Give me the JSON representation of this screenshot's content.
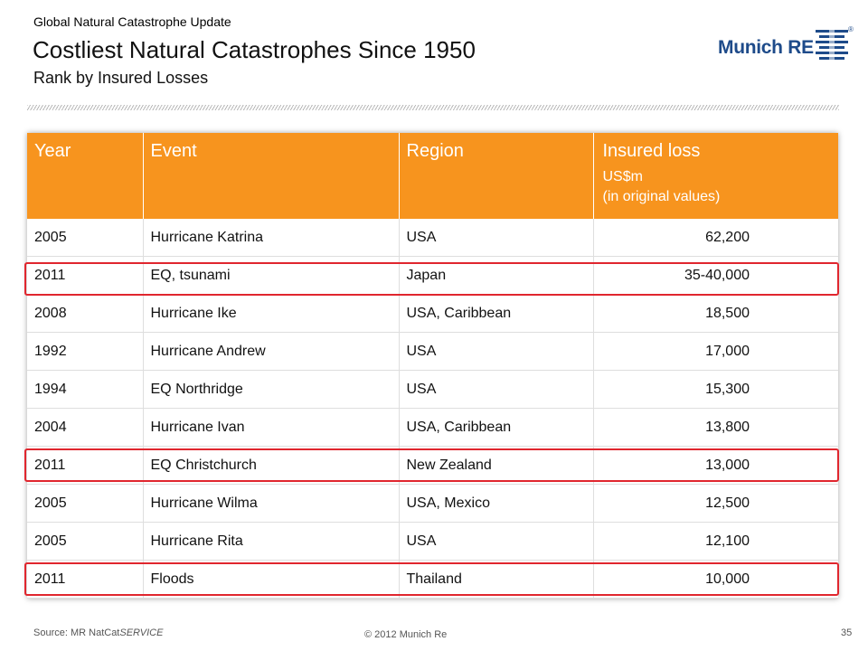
{
  "header": {
    "kicker": "Global Natural Catastrophe Update",
    "title": "Costliest Natural Catastrophes Since 1950",
    "subtitle": "Rank by Insured Losses"
  },
  "logo": {
    "text": "Munich RE",
    "mark": "munich-re-logo-mark",
    "reg": "®",
    "color": "#1e4b8a"
  },
  "table": {
    "header_color": "#f7941e",
    "columns": [
      "Year",
      "Event",
      "Region",
      "Insured loss"
    ],
    "loss_sub_1": "US$m",
    "loss_sub_2": "(in original values)",
    "rows": [
      [
        "2005",
        "Hurricane Katrina",
        "USA",
        "62,200"
      ],
      [
        "2011",
        "EQ, tsunami",
        "Japan",
        "35-40,000"
      ],
      [
        "2008",
        "Hurricane Ike",
        "USA, Caribbean",
        "18,500"
      ],
      [
        "1992",
        "Hurricane Andrew",
        "USA",
        "17,000"
      ],
      [
        "1994",
        "EQ Northridge",
        "USA",
        "15,300"
      ],
      [
        "2004",
        "Hurricane Ivan",
        "USA, Caribbean",
        "13,800"
      ],
      [
        "2011",
        "EQ Christchurch",
        "New Zealand",
        "13,000"
      ],
      [
        "2005",
        "Hurricane Wilma",
        "USA, Mexico",
        "12,500"
      ],
      [
        "2005",
        "Hurricane Rita",
        "USA",
        "12,100"
      ],
      [
        "2011",
        "Floods",
        "Thailand",
        "10,000"
      ]
    ],
    "highlight_color": "#e0262e",
    "highlighted_row_indices": [
      1,
      6,
      9
    ]
  },
  "footer": {
    "source_prefix": "Source: MR NatCat",
    "source_suffix": "SERVICE",
    "copyright": "© 2012 Munich Re",
    "page_number": "35"
  }
}
